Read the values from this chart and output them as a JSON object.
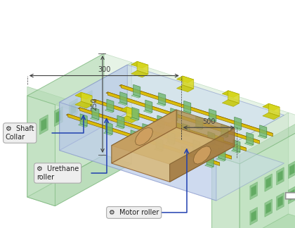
{
  "bg_color": "#ffffff",
  "labels": {
    "motor_roller": "Motor roller",
    "urethane_roller": "Urethane\nroller",
    "shaft_collar": "Shaft\nCollar"
  },
  "dimensions": {
    "dim_250": "250",
    "dim_300": "300",
    "dim_500": "500"
  },
  "colors": {
    "green_frame": "#70b070",
    "green_frame_fill": "#b8ddb8",
    "green_frame_fill2": "#a0d0a0",
    "blue_inner": "#8090c8",
    "blue_inner_fill": "#b8c8e8",
    "blue_inner_fill2": "#c8d8f0",
    "yellow_parts": "#c8a800",
    "yellow_bright": "#e0c000",
    "tan_roller": "#c8a060",
    "tan_roller_light": "#d8b878",
    "arrow_line": "#2040b0",
    "dim_line": "#404040",
    "label_bg": "#eeeeee",
    "label_border": "#aaaaaa",
    "gear_icon": "#606060",
    "right_arrow": "#909090"
  }
}
